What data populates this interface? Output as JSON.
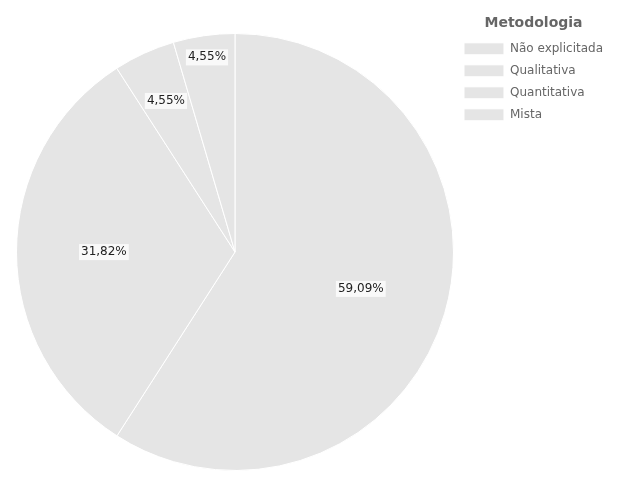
{
  "chart_data": {
    "type": "pie",
    "title": "Metodologia",
    "categories": [
      "Não explicitada",
      "Qualitativa",
      "Quantitativa",
      "Mista"
    ],
    "values": [
      59.09,
      31.82,
      4.55,
      4.55
    ],
    "value_labels": [
      "59,09%",
      "31,82%",
      "4,55%",
      "4,55%"
    ],
    "data_labels": true,
    "legend": "upper right"
  }
}
